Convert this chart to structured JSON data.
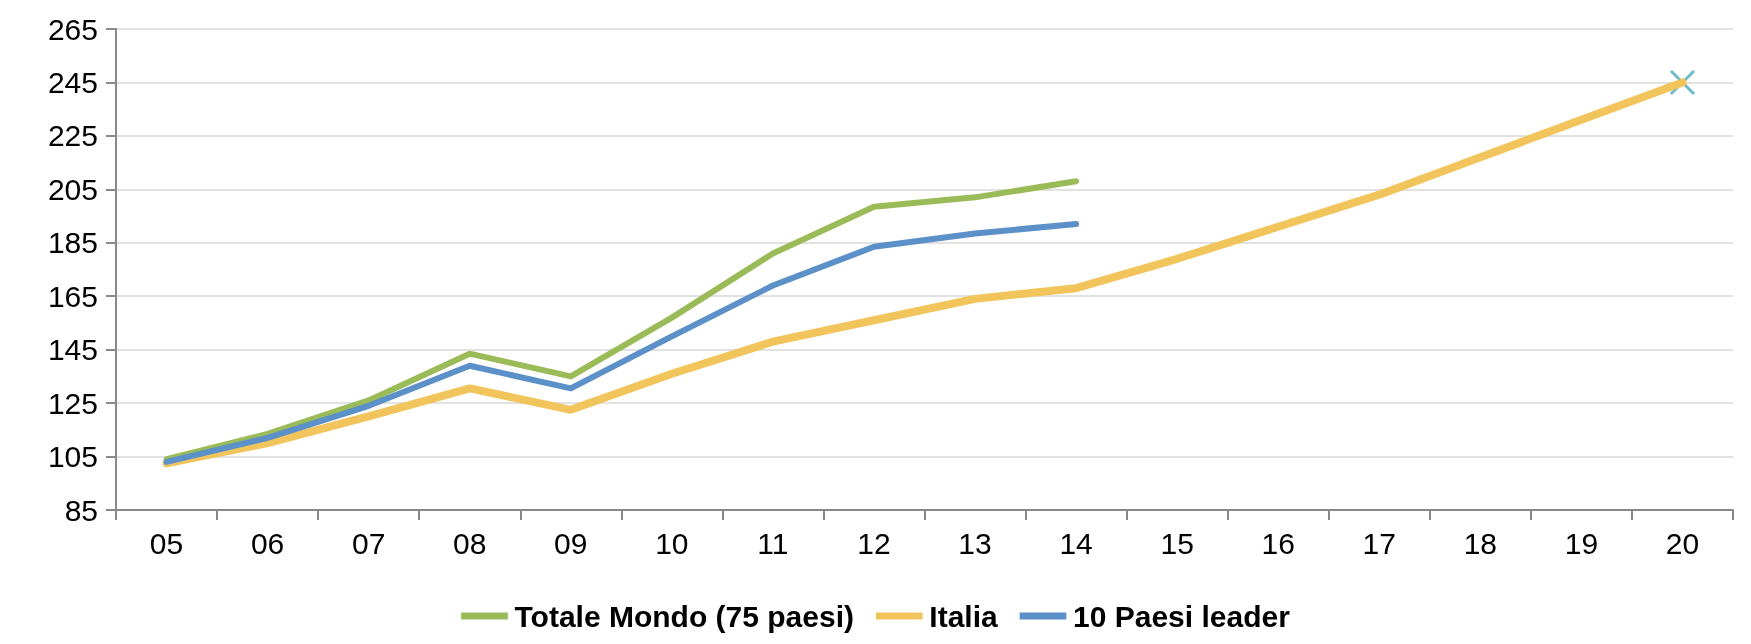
{
  "chart_data": {
    "type": "line",
    "categories": [
      "05",
      "06",
      "07",
      "08",
      "09",
      "10",
      "11",
      "12",
      "13",
      "14",
      "15",
      "16",
      "17",
      "18",
      "19",
      "20"
    ],
    "series": [
      {
        "name": "Totale Mondo (75 paesi)",
        "color": "#9bbb59",
        "values": [
          104,
          113.5,
          126,
          143.5,
          135,
          157,
          181,
          198.5,
          202,
          208,
          null,
          null,
          null,
          null,
          null,
          null
        ]
      },
      {
        "name": "Italia",
        "color": "#f2c55c",
        "values": [
          102.5,
          110,
          120,
          130.5,
          122.5,
          136,
          148,
          156,
          164,
          168,
          179,
          191,
          203,
          217,
          231,
          245
        ]
      },
      {
        "name": "10 Paesi leader",
        "color": "#5b90c8",
        "values": [
          103,
          112,
          124,
          139,
          130.5,
          150,
          169,
          183.5,
          188.5,
          192,
          null,
          null,
          null,
          null,
          null,
          null
        ]
      },
      {
        "type": "scatter",
        "marker": "cross",
        "color": "#4bacc6",
        "values": [
          null,
          null,
          null,
          null,
          null,
          null,
          null,
          null,
          null,
          null,
          null,
          null,
          null,
          null,
          null,
          245
        ]
      }
    ],
    "ylim": [
      85,
      265
    ],
    "yticks": [
      85,
      105,
      125,
      145,
      165,
      185,
      205,
      225,
      245,
      265
    ],
    "grid": "y",
    "legend": "bottom",
    "marker": "none",
    "line_style": "solid"
  }
}
